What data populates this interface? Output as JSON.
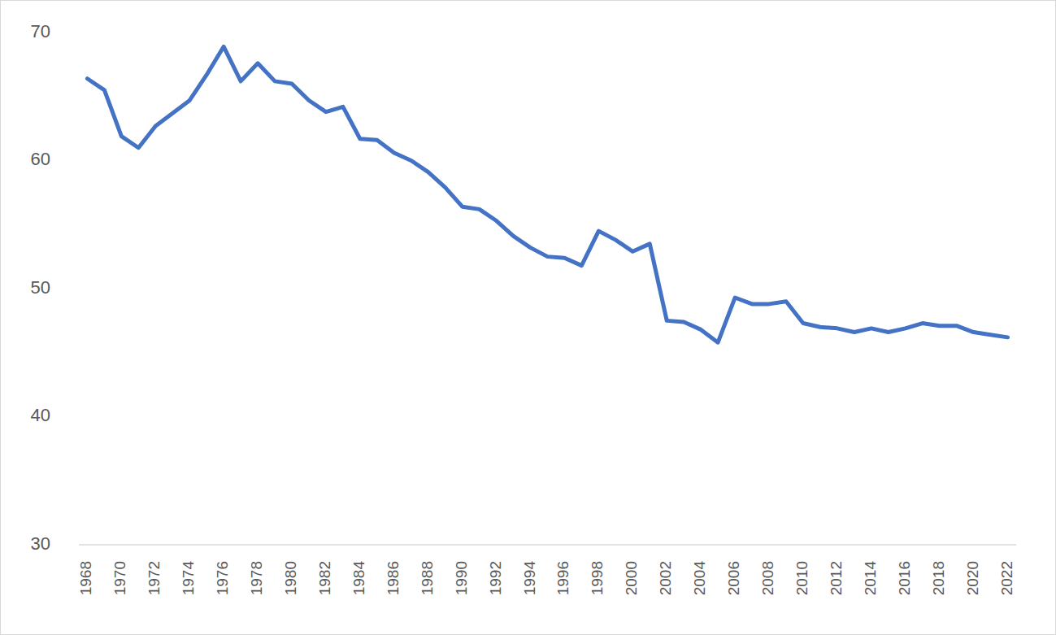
{
  "chart_data": {
    "type": "line",
    "color": "#4472c4",
    "grid": false,
    "categories": [
      "1968",
      null,
      "1970",
      null,
      "1972",
      null,
      "1974",
      null,
      "1976",
      null,
      "1978",
      null,
      "1980",
      null,
      "1982",
      null,
      "1984",
      null,
      "1986",
      null,
      "1988",
      null,
      "1990",
      null,
      "1992",
      null,
      "1994",
      null,
      "1996",
      null,
      "1998",
      null,
      "2000",
      null,
      "2002",
      null,
      "2004",
      null,
      "2006",
      null,
      "2008",
      null,
      "2010",
      null,
      "2012",
      null,
      "2014",
      null,
      "2016",
      null,
      "2018",
      null,
      "2020",
      null,
      "2022"
    ],
    "values": [
      66.4,
      65.5,
      61.9,
      61.0,
      62.7,
      63.7,
      64.7,
      66.7,
      68.9,
      66.2,
      67.6,
      66.2,
      66.0,
      64.7,
      63.8,
      64.2,
      61.7,
      61.6,
      60.6,
      60.0,
      59.1,
      57.9,
      56.4,
      56.2,
      55.3,
      54.1,
      53.2,
      52.5,
      52.4,
      51.8,
      54.5,
      53.8,
      52.9,
      53.5,
      47.5,
      47.4,
      46.8,
      45.8,
      49.3,
      48.8,
      48.8,
      49.0,
      47.3,
      47.0,
      46.9,
      46.6,
      46.9,
      46.6,
      46.9,
      47.3,
      47.1,
      47.1,
      46.6,
      46.4,
      46.2
    ],
    "ylim": [
      30,
      70
    ],
    "yticks": [
      30,
      40,
      50,
      60,
      70
    ]
  }
}
